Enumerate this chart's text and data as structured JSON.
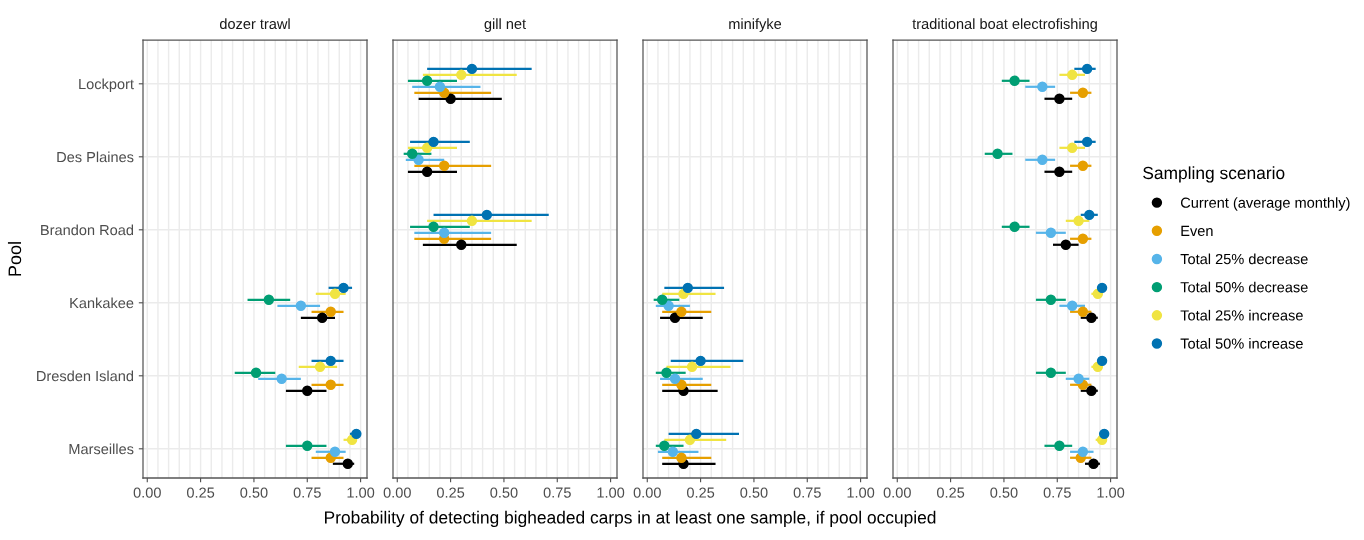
{
  "chart_data": [
    {
      "type": "scatter",
      "orientation": "horizontal",
      "title": "dozer trawl",
      "ylabel": "Pool",
      "xlabel": "Probability of detecting bigheaded carps in at least one sample, if pool occupied",
      "marker": "circle",
      "grid": true,
      "legend": false,
      "categories": [
        "Lockport",
        "Des Plaines",
        "Brandon Road",
        "Kankakee",
        "Dresden Island",
        "Marseilles"
      ],
      "xlim": [
        -0.02,
        1.03
      ],
      "xticks": [
        {
          "value": 0,
          "label": "0.00"
        },
        {
          "value": 0.05,
          "label": null
        },
        {
          "value": 0.1,
          "label": null
        },
        {
          "value": 0.15,
          "label": null
        },
        {
          "value": 0.2,
          "label": null
        },
        {
          "value": 0.25,
          "label": "0.25"
        },
        {
          "value": 0.3,
          "label": null
        },
        {
          "value": 0.35,
          "label": null
        },
        {
          "value": 0.4,
          "label": null
        },
        {
          "value": 0.45,
          "label": null
        },
        {
          "value": 0.5,
          "label": "0.50"
        },
        {
          "value": 0.55,
          "label": null
        },
        {
          "value": 0.6,
          "label": null
        },
        {
          "value": 0.65,
          "label": null
        },
        {
          "value": 0.7,
          "label": null
        },
        {
          "value": 0.75,
          "label": "0.75"
        },
        {
          "value": 0.8,
          "label": null
        },
        {
          "value": 0.85,
          "label": null
        },
        {
          "value": 0.9,
          "label": null
        },
        {
          "value": 0.95,
          "label": null
        },
        {
          "value": 1,
          "label": "1.00"
        }
      ],
      "series": [
        {
          "color": "#000000",
          "values": [
            null,
            null,
            null,
            0.82,
            0.75,
            0.94
          ],
          "errors": [
            null,
            null,
            null,
            [
              0.72,
              0.88
            ],
            [
              0.65,
              0.84
            ],
            [
              0.87,
              0.97
            ]
          ]
        },
        {
          "color": "#e69f00",
          "values": [
            null,
            null,
            null,
            0.86,
            0.86,
            0.86
          ],
          "errors": [
            null,
            null,
            null,
            [
              0.77,
              0.92
            ],
            [
              0.77,
              0.92
            ],
            [
              0.77,
              0.92
            ]
          ]
        },
        {
          "color": "#56b4e9",
          "values": [
            null,
            null,
            null,
            0.72,
            0.63,
            0.88
          ],
          "errors": [
            null,
            null,
            null,
            [
              0.61,
              0.81
            ],
            [
              0.52,
              0.72
            ],
            [
              0.79,
              0.93
            ]
          ]
        },
        {
          "color": "#009e73",
          "values": [
            null,
            null,
            null,
            0.57,
            0.51,
            0.75
          ],
          "errors": [
            null,
            null,
            null,
            [
              0.47,
              0.67
            ],
            [
              0.41,
              0.6
            ],
            [
              0.65,
              0.84
            ]
          ]
        },
        {
          "color": "#f0e442",
          "values": [
            null,
            null,
            null,
            0.88,
            0.81,
            0.96
          ],
          "errors": [
            null,
            null,
            null,
            [
              0.79,
              0.93
            ],
            [
              0.71,
              0.89
            ],
            [
              0.92,
              0.98
            ]
          ]
        },
        {
          "color": "#0072b2",
          "values": [
            null,
            null,
            null,
            0.92,
            0.86,
            0.98
          ],
          "errors": [
            null,
            null,
            null,
            [
              0.85,
              0.96
            ],
            [
              0.77,
              0.92
            ],
            [
              0.95,
              1.0
            ]
          ]
        }
      ]
    },
    {
      "type": "scatter",
      "orientation": "horizontal",
      "title": "gill net",
      "marker": "circle",
      "grid": true,
      "legend": false,
      "tick_labels": "x",
      "categories": [
        null,
        null,
        null,
        null,
        null,
        null
      ],
      "xlim": [
        -0.02,
        1.03
      ],
      "xticks": [
        {
          "value": 0,
          "label": "0.00"
        },
        {
          "value": 0.05,
          "label": null
        },
        {
          "value": 0.1,
          "label": null
        },
        {
          "value": 0.15,
          "label": null
        },
        {
          "value": 0.2,
          "label": null
        },
        {
          "value": 0.25,
          "label": "0.25"
        },
        {
          "value": 0.3,
          "label": null
        },
        {
          "value": 0.35,
          "label": null
        },
        {
          "value": 0.4,
          "label": null
        },
        {
          "value": 0.45,
          "label": null
        },
        {
          "value": 0.5,
          "label": "0.50"
        },
        {
          "value": 0.55,
          "label": null
        },
        {
          "value": 0.6,
          "label": null
        },
        {
          "value": 0.65,
          "label": null
        },
        {
          "value": 0.7,
          "label": null
        },
        {
          "value": 0.75,
          "label": "0.75"
        },
        {
          "value": 0.8,
          "label": null
        },
        {
          "value": 0.85,
          "label": null
        },
        {
          "value": 0.9,
          "label": null
        },
        {
          "value": 0.95,
          "label": null
        },
        {
          "value": 1,
          "label": "1.00"
        }
      ],
      "series": [
        {
          "color": "#000000",
          "values": [
            0.25,
            0.14,
            0.3,
            null,
            null,
            null
          ],
          "errors": [
            [
              0.1,
              0.49
            ],
            [
              0.05,
              0.28
            ],
            [
              0.12,
              0.56
            ],
            null,
            null,
            null
          ]
        },
        {
          "color": "#e69f00",
          "values": [
            0.22,
            0.22,
            0.22,
            null,
            null,
            null
          ],
          "errors": [
            [
              0.08,
              0.44
            ],
            [
              0.08,
              0.44
            ],
            [
              0.08,
              0.44
            ],
            null,
            null,
            null
          ]
        },
        {
          "color": "#56b4e9",
          "values": [
            0.2,
            0.1,
            0.22,
            null,
            null,
            null
          ],
          "errors": [
            [
              0.07,
              0.39
            ],
            [
              0.04,
              0.22
            ],
            [
              0.08,
              0.44
            ],
            null,
            null,
            null
          ]
        },
        {
          "color": "#009e73",
          "values": [
            0.14,
            0.07,
            0.17,
            null,
            null,
            null
          ],
          "errors": [
            [
              0.05,
              0.28
            ],
            [
              0.03,
              0.16
            ],
            [
              0.06,
              0.34
            ],
            null,
            null,
            null
          ]
        },
        {
          "color": "#f0e442",
          "values": [
            0.3,
            0.14,
            0.35,
            null,
            null,
            null
          ],
          "errors": [
            [
              0.12,
              0.56
            ],
            [
              0.05,
              0.28
            ],
            [
              0.14,
              0.63
            ],
            null,
            null,
            null
          ]
        },
        {
          "color": "#0072b2",
          "values": [
            0.35,
            0.17,
            0.42,
            null,
            null,
            null
          ],
          "errors": [
            [
              0.14,
              0.63
            ],
            [
              0.06,
              0.34
            ],
            [
              0.17,
              0.71
            ],
            null,
            null,
            null
          ]
        }
      ]
    },
    {
      "type": "scatter",
      "orientation": "horizontal",
      "title": "minifyke",
      "marker": "circle",
      "grid": true,
      "legend": false,
      "tick_labels": "x",
      "categories": [
        null,
        null,
        null,
        null,
        null,
        null
      ],
      "xlim": [
        -0.02,
        1.03
      ],
      "xticks": [
        {
          "value": 0,
          "label": "0.00"
        },
        {
          "value": 0.05,
          "label": null
        },
        {
          "value": 0.1,
          "label": null
        },
        {
          "value": 0.15,
          "label": null
        },
        {
          "value": 0.2,
          "label": null
        },
        {
          "value": 0.25,
          "label": "0.25"
        },
        {
          "value": 0.3,
          "label": null
        },
        {
          "value": 0.35,
          "label": null
        },
        {
          "value": 0.4,
          "label": null
        },
        {
          "value": 0.45,
          "label": null
        },
        {
          "value": 0.5,
          "label": "0.50"
        },
        {
          "value": 0.55,
          "label": null
        },
        {
          "value": 0.6,
          "label": null
        },
        {
          "value": 0.65,
          "label": null
        },
        {
          "value": 0.7,
          "label": null
        },
        {
          "value": 0.75,
          "label": "0.75"
        },
        {
          "value": 0.8,
          "label": null
        },
        {
          "value": 0.85,
          "label": null
        },
        {
          "value": 0.9,
          "label": null
        },
        {
          "value": 0.95,
          "label": null
        },
        {
          "value": 1,
          "label": "1.00"
        }
      ],
      "series": [
        {
          "color": "#000000",
          "values": [
            null,
            null,
            null,
            0.13,
            0.17,
            0.17
          ],
          "errors": [
            null,
            null,
            null,
            [
              0.06,
              0.26
            ],
            [
              0.07,
              0.33
            ],
            [
              0.07,
              0.32
            ]
          ]
        },
        {
          "color": "#e69f00",
          "values": [
            null,
            null,
            null,
            0.16,
            0.16,
            0.16
          ],
          "errors": [
            null,
            null,
            null,
            [
              0.07,
              0.3
            ],
            [
              0.07,
              0.3
            ],
            [
              0.07,
              0.3
            ]
          ]
        },
        {
          "color": "#56b4e9",
          "values": [
            null,
            null,
            null,
            0.1,
            0.13,
            0.12
          ],
          "errors": [
            null,
            null,
            null,
            [
              0.04,
              0.2
            ],
            [
              0.06,
              0.26
            ],
            [
              0.05,
              0.24
            ]
          ]
        },
        {
          "color": "#009e73",
          "values": [
            null,
            null,
            null,
            0.07,
            0.09,
            0.08
          ],
          "errors": [
            null,
            null,
            null,
            [
              0.03,
              0.15
            ],
            [
              0.04,
              0.18
            ],
            [
              0.04,
              0.17
            ]
          ]
        },
        {
          "color": "#f0e442",
          "values": [
            null,
            null,
            null,
            0.17,
            0.21,
            0.2
          ],
          "errors": [
            null,
            null,
            null,
            [
              0.07,
              0.32
            ],
            [
              0.09,
              0.39
            ],
            [
              0.08,
              0.37
            ]
          ]
        },
        {
          "color": "#0072b2",
          "values": [
            null,
            null,
            null,
            0.19,
            0.25,
            0.23
          ],
          "errors": [
            null,
            null,
            null,
            [
              0.08,
              0.36
            ],
            [
              0.11,
              0.45
            ],
            [
              0.1,
              0.43
            ]
          ]
        }
      ]
    },
    {
      "type": "scatter",
      "orientation": "horizontal",
      "title": "traditional boat electrofishing",
      "marker": "circle",
      "grid": true,
      "legend": "right",
      "legend_title": "Sampling scenario",
      "tick_labels": "x",
      "categories": [
        null,
        null,
        null,
        null,
        null,
        null
      ],
      "xlim": [
        -0.02,
        1.03
      ],
      "xticks": [
        {
          "value": 0,
          "label": "0.00"
        },
        {
          "value": 0.05,
          "label": null
        },
        {
          "value": 0.1,
          "label": null
        },
        {
          "value": 0.15,
          "label": null
        },
        {
          "value": 0.2,
          "label": null
        },
        {
          "value": 0.25,
          "label": "0.25"
        },
        {
          "value": 0.3,
          "label": null
        },
        {
          "value": 0.35,
          "label": null
        },
        {
          "value": 0.4,
          "label": null
        },
        {
          "value": 0.45,
          "label": null
        },
        {
          "value": 0.5,
          "label": "0.50"
        },
        {
          "value": 0.55,
          "label": null
        },
        {
          "value": 0.6,
          "label": null
        },
        {
          "value": 0.65,
          "label": null
        },
        {
          "value": 0.7,
          "label": null
        },
        {
          "value": 0.75,
          "label": "0.75"
        },
        {
          "value": 0.8,
          "label": null
        },
        {
          "value": 0.85,
          "label": null
        },
        {
          "value": 0.9,
          "label": null
        },
        {
          "value": 0.95,
          "label": null
        },
        {
          "value": 1,
          "label": "1.00"
        }
      ],
      "series": [
        {
          "name": "Current (average monthly)",
          "color": "#000000",
          "values": [
            0.76,
            0.76,
            0.79,
            0.91,
            0.91,
            0.92
          ],
          "errors": [
            [
              0.69,
              0.82
            ],
            [
              0.69,
              0.82
            ],
            [
              0.73,
              0.85
            ],
            [
              0.86,
              0.94
            ],
            [
              0.86,
              0.94
            ],
            [
              0.88,
              0.95
            ]
          ]
        },
        {
          "name": "Even",
          "color": "#e69f00",
          "values": [
            0.87,
            0.87,
            0.87,
            0.87,
            0.87,
            0.86
          ],
          "errors": [
            [
              0.81,
              0.91
            ],
            [
              0.81,
              0.91
            ],
            [
              0.81,
              0.91
            ],
            [
              0.81,
              0.91
            ],
            [
              0.81,
              0.91
            ],
            [
              0.81,
              0.91
            ]
          ]
        },
        {
          "name": "Total 25% decrease",
          "color": "#56b4e9",
          "values": [
            0.68,
            0.68,
            0.72,
            0.82,
            0.85,
            0.87
          ],
          "errors": [
            [
              0.6,
              0.74
            ],
            [
              0.6,
              0.74
            ],
            [
              0.65,
              0.79
            ],
            [
              0.76,
              0.88
            ],
            [
              0.79,
              0.9
            ],
            [
              0.81,
              0.92
            ]
          ]
        },
        {
          "name": "Total 50% decrease",
          "color": "#009e73",
          "values": [
            0.55,
            0.47,
            0.55,
            0.72,
            0.72,
            0.76
          ],
          "errors": [
            [
              0.49,
              0.62
            ],
            [
              0.41,
              0.54
            ],
            [
              0.49,
              0.62
            ],
            [
              0.65,
              0.79
            ],
            [
              0.65,
              0.79
            ],
            [
              0.69,
              0.82
            ]
          ]
        },
        {
          "name": "Total 25% increase",
          "color": "#f0e442",
          "values": [
            0.82,
            0.82,
            0.85,
            0.94,
            0.94,
            0.96
          ],
          "errors": [
            [
              0.76,
              0.88
            ],
            [
              0.76,
              0.88
            ],
            [
              0.79,
              0.9
            ],
            [
              0.91,
              0.96
            ],
            [
              0.91,
              0.96
            ],
            [
              0.93,
              0.98
            ]
          ]
        },
        {
          "name": "Total 50% increase",
          "color": "#0072b2",
          "values": [
            0.89,
            0.89,
            0.9,
            0.96,
            0.96,
            0.97
          ],
          "errors": [
            [
              0.83,
              0.93
            ],
            [
              0.83,
              0.93
            ],
            [
              0.86,
              0.94
            ],
            [
              0.94,
              0.98
            ],
            [
              0.94,
              0.98
            ],
            [
              0.96,
              0.99
            ]
          ]
        }
      ]
    }
  ]
}
